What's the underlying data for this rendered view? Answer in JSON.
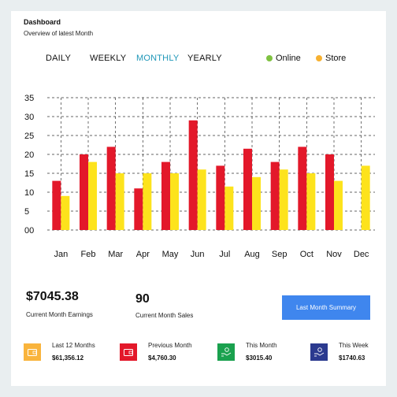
{
  "header": {
    "title": "Dashboard",
    "subtitle": "Overview of latest Month"
  },
  "tabs": [
    {
      "label": "DAILY",
      "active": false
    },
    {
      "label": "WEEKLY",
      "active": false
    },
    {
      "label": "MONTHLY",
      "active": true
    },
    {
      "label": "YEARLY",
      "active": false
    }
  ],
  "legend": [
    {
      "label": "Online",
      "color": "#7fc241"
    },
    {
      "label": "Store",
      "color": "#f7b131"
    }
  ],
  "colors": {
    "online_bar": "#e3182a",
    "store_bar": "#fde31c",
    "accent": "#1f97b8",
    "button": "#3f86ee"
  },
  "chart_data": {
    "type": "bar",
    "categories": [
      "Jan",
      "Feb",
      "Mar",
      "Apr",
      "May",
      "Jun",
      "Jul",
      "Aug",
      "Sep",
      "Oct",
      "Nov",
      "Dec"
    ],
    "series": [
      {
        "name": "Online",
        "values": [
          13,
          20,
          22,
          11,
          18,
          29,
          17,
          21.5,
          18,
          22,
          20,
          null
        ]
      },
      {
        "name": "Store",
        "values": [
          9,
          18,
          15,
          15,
          15,
          16,
          11.5,
          14,
          16,
          15,
          13,
          17
        ]
      }
    ],
    "ylim": [
      0,
      35
    ],
    "yticks": [
      "00",
      "5",
      "10",
      "15",
      "20",
      "25",
      "30",
      "35"
    ],
    "grid": true
  },
  "stats": {
    "earnings_value": "$7045.38",
    "earnings_label": "Current Month Earnings",
    "sales_value": "90",
    "sales_label": "Current Month Sales",
    "button_label": "Last Month Summary"
  },
  "mini_stats": [
    {
      "label": "Last 12 Months",
      "value": "$61,356.12",
      "color": "#f9b43c",
      "icon": "wallet-icon"
    },
    {
      "label": "Previous Month",
      "value": "$4,760.30",
      "color": "#e3182a",
      "icon": "wallet-icon"
    },
    {
      "label": "This Month",
      "value": "$3015.40",
      "color": "#1aa14e",
      "icon": "hand-money-icon"
    },
    {
      "label": "This Week",
      "value": "$1740.63",
      "color": "#2b3a8f",
      "icon": "hand-money-icon"
    }
  ]
}
